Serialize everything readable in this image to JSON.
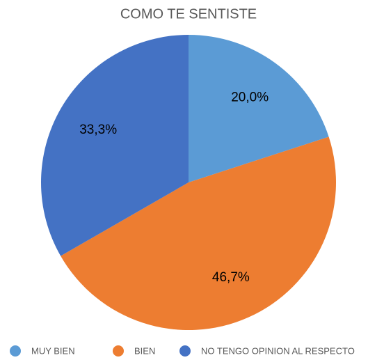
{
  "chart_data": {
    "type": "pie",
    "title": "COMO TE SENTISTE",
    "categories": [
      "MUY BIEN",
      "BIEN",
      "NO TENGO OPINION AL RESPECTO"
    ],
    "values": [
      20.0,
      46.7,
      33.3
    ],
    "value_labels": [
      "20,0%",
      "46,7%",
      "33,3%"
    ],
    "colors": [
      "#5b9bd5",
      "#ed7d31",
      "#4472c4"
    ],
    "legend": "bottom"
  }
}
